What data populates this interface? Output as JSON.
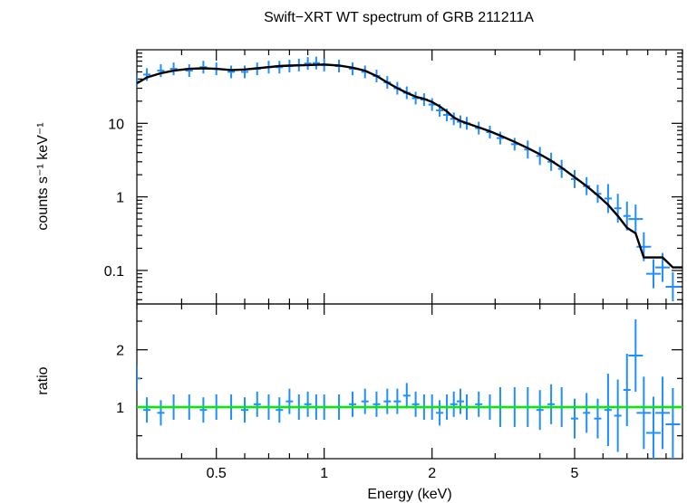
{
  "chart_data": [
    {
      "type": "scatter",
      "panel": "top",
      "title": "Swift−XRT WT spectrum of GRB 211211A",
      "ylabel": "counts s⁻¹ keV⁻¹",
      "x_scale": "log",
      "y_scale": "log",
      "xlim": [
        0.3,
        10
      ],
      "ylim": [
        0.035,
        100
      ],
      "y_tick_labels": [
        "0.1",
        "1",
        "10"
      ],
      "y_tick_values": [
        0.1,
        1,
        10
      ],
      "colors": {
        "data": "#1f8fff",
        "model": "#000000"
      },
      "series": [
        {
          "role": "data",
          "x": [
            0.3,
            0.32,
            0.35,
            0.38,
            0.42,
            0.46,
            0.5,
            0.55,
            0.6,
            0.65,
            0.7,
            0.75,
            0.8,
            0.85,
            0.9,
            0.95,
            1.0,
            1.1,
            1.2,
            1.3,
            1.4,
            1.5,
            1.6,
            1.7,
            1.8,
            1.9,
            2.0,
            2.1,
            2.2,
            2.3,
            2.4,
            2.5,
            2.7,
            2.9,
            3.1,
            3.4,
            3.7,
            4.0,
            4.3,
            4.6,
            5.0,
            5.4,
            5.8,
            6.2,
            6.6,
            7.0,
            7.4,
            7.8,
            8.3,
            8.8,
            9.4
          ],
          "y": [
            37,
            46,
            52,
            55,
            52,
            58,
            55,
            50,
            50,
            55,
            58,
            58,
            60,
            62,
            65,
            66,
            62,
            60,
            55,
            50,
            44,
            36,
            30,
            26,
            22,
            21,
            18,
            15,
            13,
            11.5,
            10.5,
            10,
            8.6,
            7.6,
            6.3,
            5.2,
            4.4,
            3.6,
            3.0,
            2.4,
            1.75,
            1.4,
            1.1,
            0.95,
            0.7,
            0.55,
            0.5,
            0.21,
            0.09,
            0.11,
            0.06
          ]
        },
        {
          "role": "model",
          "x": [
            0.3,
            0.32,
            0.35,
            0.38,
            0.42,
            0.46,
            0.5,
            0.55,
            0.6,
            0.65,
            0.7,
            0.75,
            0.8,
            0.9,
            1.0,
            1.1,
            1.2,
            1.3,
            1.4,
            1.5,
            1.6,
            1.7,
            1.8,
            1.9,
            2.0,
            2.1,
            2.2,
            2.3,
            2.4,
            2.5,
            2.7,
            2.9,
            3.1,
            3.4,
            3.7,
            4.0,
            4.3,
            4.6,
            5.0,
            5.4,
            5.8,
            6.2,
            6.6,
            7.0,
            7.4,
            7.8,
            8.3,
            8.8,
            9.4,
            10.0
          ],
          "y": [
            35,
            42,
            48,
            52,
            55,
            56,
            55,
            53,
            54,
            56,
            58,
            60,
            61,
            62,
            63,
            61,
            57,
            52,
            44,
            36,
            30,
            26,
            23,
            21.5,
            19.5,
            17,
            14.5,
            12,
            10.8,
            10,
            8.8,
            7.8,
            6.8,
            5.6,
            4.6,
            3.8,
            3.1,
            2.5,
            1.85,
            1.4,
            1.05,
            0.78,
            0.55,
            0.38,
            0.32,
            0.15,
            0.15,
            0.15,
            0.11,
            0.11
          ]
        }
      ]
    },
    {
      "type": "scatter",
      "panel": "bottom",
      "xlabel": "Energy (keV)",
      "ylabel": "ratio",
      "x_scale": "log",
      "y_scale": "linear",
      "xlim": [
        0.3,
        10
      ],
      "ylim": [
        0.1,
        2.8
      ],
      "x_tick_labels": [
        "0.5",
        "1",
        "2",
        "5"
      ],
      "x_tick_values": [
        0.5,
        1,
        2,
        5
      ],
      "y_tick_labels": [
        "1",
        "2"
      ],
      "y_tick_values": [
        1,
        2
      ],
      "reference_line": 1,
      "colors": {
        "data": "#1f8fff",
        "reference": "#00ee00"
      },
      "series": [
        {
          "role": "data",
          "x": [
            0.3,
            0.32,
            0.35,
            0.38,
            0.42,
            0.46,
            0.5,
            0.55,
            0.6,
            0.65,
            0.7,
            0.75,
            0.8,
            0.85,
            0.9,
            0.95,
            1.0,
            1.1,
            1.2,
            1.3,
            1.4,
            1.5,
            1.6,
            1.7,
            1.8,
            1.9,
            2.0,
            2.1,
            2.2,
            2.3,
            2.4,
            2.5,
            2.7,
            2.9,
            3.1,
            3.4,
            3.7,
            4.0,
            4.3,
            4.6,
            5.0,
            5.4,
            5.8,
            6.2,
            6.6,
            7.0,
            7.4,
            7.8,
            8.3,
            8.8,
            9.4
          ],
          "y": [
            1.5,
            0.95,
            0.9,
            1.0,
            1.0,
            0.95,
            1.0,
            1.0,
            0.95,
            1.05,
            1.0,
            0.95,
            1.1,
            1.0,
            1.05,
            1.0,
            1.0,
            1.0,
            1.05,
            1.1,
            1.05,
            1.1,
            1.1,
            1.2,
            1.05,
            1.0,
            1.0,
            0.9,
            1.0,
            1.05,
            1.1,
            1.0,
            1.05,
            1.0,
            1.0,
            1.0,
            1.0,
            0.95,
            1.05,
            1.0,
            0.8,
            0.9,
            0.8,
            0.95,
            0.85,
            1.3,
            1.9,
            0.9,
            0.55,
            0.9,
            0.7
          ]
        }
      ]
    }
  ]
}
